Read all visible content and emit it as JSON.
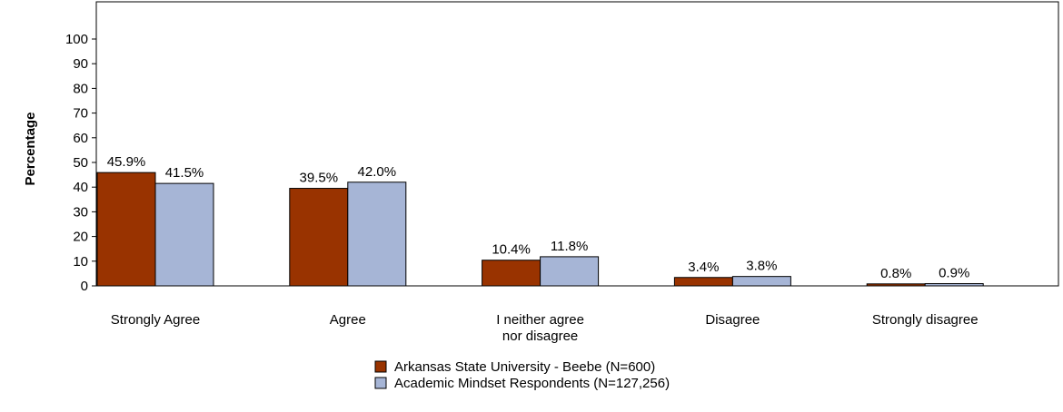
{
  "chart_data": {
    "type": "bar",
    "title": "",
    "xlabel": "",
    "ylabel": "Percentage",
    "ylim": [
      0,
      100
    ],
    "yticks": [
      0,
      10,
      20,
      30,
      40,
      50,
      60,
      70,
      80,
      90,
      100
    ],
    "categories": [
      [
        "Strongly Agree"
      ],
      [
        "Agree"
      ],
      [
        "I neither agree",
        "nor disagree"
      ],
      [
        "Disagree"
      ],
      [
        "Strongly disagree"
      ]
    ],
    "series": [
      {
        "name": "Arkansas State University - Beebe (N=600)",
        "color": "#993300",
        "values": [
          45.9,
          39.5,
          10.4,
          3.4,
          0.8
        ],
        "labels": [
          "45.9%",
          "39.5%",
          "10.4%",
          "3.4%",
          "0.8%"
        ]
      },
      {
        "name": "Academic Mindset Respondents (N=127,256)",
        "color": "#a6b5d6",
        "values": [
          41.5,
          42.0,
          11.8,
          3.8,
          0.9
        ],
        "labels": [
          "41.5%",
          "42.0%",
          "11.8%",
          "3.8%",
          "0.9%"
        ]
      }
    ],
    "grid": false,
    "legend_position": "bottom-center"
  }
}
